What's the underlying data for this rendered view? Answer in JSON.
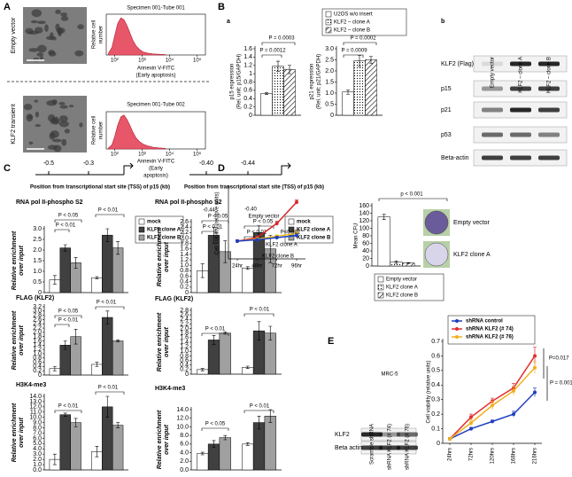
{
  "figure": {
    "panel_labels": [
      "A",
      "B",
      "a",
      "b",
      "C",
      "D",
      "E"
    ],
    "a_rows": [
      "Empty vector",
      "KLF2 transient"
    ],
    "blot_b": {
      "lanes": [
        "Empty vector",
        "KLF2 – clone A",
        "KLF2 – clone B"
      ],
      "rows": [
        "KLF2 (Flag)",
        "p15",
        "p21",
        "p53",
        "Beta-actin"
      ]
    },
    "tss": [
      {
        "label": "Position from transcriptional start site (TSS)  of p15 (kb)",
        "sites": [
          "-0.5",
          "-0.3"
        ]
      },
      {
        "label": "Position from transcriptional start site (TSS)  of p15 (kb)",
        "sites": [
          "-0.40",
          "-0.44"
        ]
      }
    ],
    "d_images": [
      "Empty vector",
      "KLF2 clone A"
    ],
    "blot_e": {
      "title": "MRC-5",
      "lanes": [
        "Scramble shRNA",
        "shRNA KLF2 (# 74)",
        "shRNA KLF2 (# 76)"
      ],
      "rows": [
        "KLF2",
        "Beta actin"
      ]
    }
  },
  "chart_data": [
    {
      "type": "area",
      "title": "Specimen 001-Tube 001",
      "ylabel": [
        "Relative cell",
        "number"
      ],
      "xlabel": [
        "Annexin V-FITC",
        "(Early apoptosis)"
      ],
      "log_x": true,
      "color": "#e8566a",
      "x": [
        60,
        80,
        100,
        130,
        170,
        220,
        280,
        360,
        460,
        600,
        800,
        1100,
        1600,
        2500,
        4000,
        7000
      ],
      "values": [
        0.05,
        0.2,
        0.5,
        0.85,
        1.0,
        0.95,
        0.8,
        0.6,
        0.4,
        0.25,
        0.15,
        0.08,
        0.05,
        0.03,
        0.02,
        0.01
      ],
      "xlim": [
        50,
        200000
      ],
      "ylim": [
        0,
        1.1
      ],
      "xticks": [
        {
          "value": 100,
          "label": "10²"
        },
        {
          "value": 1000,
          "label": "10³"
        },
        {
          "value": 10000,
          "label": "10⁴"
        },
        {
          "value": 100000,
          "label": "10⁵"
        }
      ]
    },
    {
      "type": "area",
      "title": "Specimen 001-Tube 002",
      "ylabel": [
        "Relative cell",
        "number"
      ],
      "xlabel": [
        "Annexin V-FITC",
        "(Early",
        "apoptosis)"
      ],
      "log_x": true,
      "color": "#e8566a",
      "x": [
        60,
        80,
        100,
        130,
        170,
        220,
        280,
        360,
        460,
        600,
        800,
        1100,
        1600,
        2500,
        4000,
        7000
      ],
      "values": [
        0.03,
        0.12,
        0.35,
        0.7,
        0.95,
        1.0,
        0.88,
        0.7,
        0.5,
        0.33,
        0.22,
        0.14,
        0.09,
        0.05,
        0.03,
        0.02
      ],
      "xlim": [
        50,
        200000
      ],
      "ylim": [
        0,
        1.1
      ],
      "xticks": [
        {
          "value": 100,
          "label": "10²"
        },
        {
          "value": 1000,
          "label": "10³"
        },
        {
          "value": 10000,
          "label": "10⁴"
        },
        {
          "value": 100000,
          "label": "10⁵"
        }
      ]
    },
    {
      "type": "bar",
      "ylabel": [
        "p15 expression",
        "(Rel. unit: p15/GAPDH)"
      ],
      "categories": [
        null
      ],
      "series": [
        {
          "name": "U2OS w/o insert",
          "color": "#ffffff",
          "values": [
            0.52
          ],
          "errors": [
            0.02
          ]
        },
        {
          "name": "KLF2 – clone A",
          "color": "#ffffff",
          "pattern": "dots",
          "values": [
            1.18
          ],
          "errors": [
            0.12
          ]
        },
        {
          "name": "KLF2 – clone B",
          "color": "#ffffff",
          "pattern": "hatch",
          "values": [
            1.1
          ],
          "errors": [
            0.1
          ]
        }
      ],
      "ylim": [
        0,
        1.6
      ],
      "yticks": [
        0,
        0.2,
        0.4,
        0.6,
        0.8,
        1,
        1.2,
        1.4,
        1.6
      ],
      "annotations": [
        "P = 0.0003",
        "P = 0.0012"
      ]
    },
    {
      "type": "bar",
      "ylabel": [
        "p21 expression",
        "(Rel. unit: p21/GAPDH)"
      ],
      "categories": [
        null
      ],
      "series": [
        {
          "color": "#ffffff",
          "values": [
            1.05
          ],
          "errors": [
            0.1
          ]
        },
        {
          "color": "#ffffff",
          "pattern": "dots",
          "values": [
            2.45
          ],
          "errors": [
            0.25
          ]
        },
        {
          "color": "#ffffff",
          "pattern": "hatch",
          "values": [
            2.5
          ],
          "errors": [
            0.15
          ]
        }
      ],
      "ylim": [
        0,
        3
      ],
      "yticks": [
        0,
        0.5,
        {
          "value": 1,
          "label": "1.0"
        },
        1.5,
        {
          "value": 2,
          "label": "2.0"
        },
        2.5,
        {
          "value": 3,
          "label": "3.0"
        }
      ],
      "annotations": [
        "P = 0.0002",
        "P = 0.0009"
      ]
    },
    {
      "type": "bar",
      "title": "RNA pol II-phospho S2",
      "ylabel": [
        "Relative enrichment",
        "over input"
      ],
      "categories": [
        null,
        null
      ],
      "series": [
        {
          "name": "mock",
          "color": "#ffffff",
          "values": [
            0.6,
            0.7
          ],
          "errors": [
            0.2,
            0.05
          ]
        },
        {
          "name": "KLF2 clone A",
          "color": "#404040",
          "values": [
            2.1,
            2.7
          ],
          "errors": [
            0.15,
            0.3
          ]
        },
        {
          "name": "KLF2 clone B",
          "color": "#a0a0a0",
          "values": [
            1.4,
            2.1
          ],
          "errors": [
            0.25,
            0.3
          ]
        }
      ],
      "ylim": [
        0,
        3
      ],
      "yticks": [
        0,
        0.5,
        {
          "value": 1,
          "label": "1.0"
        },
        1.5,
        {
          "value": 2,
          "label": "2.0"
        },
        2.5,
        {
          "value": 3,
          "label": "3.0"
        }
      ],
      "annotations": [
        "P < 0.01",
        "P < 0.05",
        "P < 0.01"
      ]
    },
    {
      "type": "bar",
      "title": "RNA pol II-phospho S2",
      "ylabel": [
        "Relative enrichment",
        "over input"
      ],
      "categories": [
        null,
        null
      ],
      "series": [
        {
          "name": "mock",
          "color": "#ffffff",
          "values": [
            0.8,
            0.9
          ],
          "errors": [
            0.25,
            0.05
          ]
        },
        {
          "name": "KLF2 clone A",
          "color": "#404040",
          "values": [
            2.1,
            2.2
          ],
          "errors": [
            0.3,
            0.25
          ]
        },
        {
          "name": "KLF2 clone B",
          "color": "#a0a0a0",
          "values": [
            1.5,
            1.6
          ],
          "errors": [
            0.4,
            0.5
          ]
        }
      ],
      "ylim": [
        0,
        2.6
      ],
      "yticks": [
        0,
        0.2,
        0.4,
        0.6,
        0.8,
        {
          "value": 1,
          "label": "1.0"
        },
        1.2,
        1.4,
        1.6,
        1.8,
        {
          "value": 2,
          "label": "2.0"
        },
        2.2,
        2.4,
        2.6
      ],
      "annotations": [
        "-0.44",
        "-0.40",
        "P < 0.05",
        "P < 0.01",
        "P < 0.05",
        "P < 0.01"
      ]
    },
    {
      "type": "bar",
      "title": "FLAG (KLF2)",
      "ylabel": [
        "Relative enrichment",
        "over input"
      ],
      "categories": [
        null,
        null
      ],
      "series": [
        {
          "color": "#ffffff",
          "values": [
            0.3,
            0.5
          ],
          "errors": [
            0.1,
            0.1
          ]
        },
        {
          "color": "#404040",
          "values": [
            1.4,
            2.7
          ],
          "errors": [
            0.2,
            0.3
          ]
        },
        {
          "color": "#a0a0a0",
          "values": [
            1.8,
            1.6
          ],
          "errors": [
            0.35,
            0.05
          ]
        }
      ],
      "ylim": [
        0,
        3.2
      ],
      "yticks": [
        0,
        0.2,
        0.4,
        0.6,
        0.8,
        {
          "value": 1,
          "label": "1.0"
        },
        1.2,
        1.4,
        1.6,
        1.8,
        {
          "value": 2,
          "label": "2.0"
        },
        2.2,
        2.4,
        2.6,
        2.8,
        {
          "value": 3,
          "label": "3.0"
        },
        3.2
      ],
      "annotations": [
        "P < 0.01",
        "P < 0.05",
        "P < 0.01"
      ]
    },
    {
      "type": "bar",
      "title": "FLAG (KLF2)",
      "ylabel": [
        "Relative enrichment",
        "over input"
      ],
      "categories": [
        null,
        null
      ],
      "series": [
        {
          "color": "#ffffff",
          "values": [
            0.2,
            0.3
          ],
          "errors": [
            0.05,
            0.05
          ]
        },
        {
          "color": "#404040",
          "values": [
            1.5,
            1.9
          ],
          "errors": [
            0.2,
            0.4
          ]
        },
        {
          "color": "#a0a0a0",
          "values": [
            1.8,
            1.8
          ],
          "errors": [
            0.05,
            0.3
          ]
        }
      ],
      "ylim": [
        0,
        2.8
      ],
      "yticks": [
        0,
        0.2,
        0.4,
        0.6,
        0.8,
        {
          "value": 1,
          "label": "1.0"
        },
        1.2,
        1.4,
        1.6,
        1.8,
        {
          "value": 2,
          "label": "2.0"
        },
        2.2,
        2.4,
        2.6,
        2.8
      ],
      "annotations": [
        "P < 0.01",
        "P < 0.01"
      ]
    },
    {
      "type": "bar",
      "title": "H3K4-me3",
      "ylabel": [
        "Relative enrichment",
        "over input"
      ],
      "categories": [
        null,
        null
      ],
      "series": [
        {
          "color": "#ffffff",
          "values": [
            2.0,
            3.5
          ],
          "errors": [
            1,
            1
          ]
        },
        {
          "color": "#404040",
          "values": [
            10.5,
            12.0
          ],
          "errors": [
            0.3,
            2.0
          ]
        },
        {
          "color": "#a0a0a0",
          "values": [
            9.0,
            8.5
          ],
          "errors": [
            0.8,
            0.5
          ]
        }
      ],
      "ylim": [
        0,
        14
      ],
      "yticks": [
        {
          "value": 0,
          "label": "0.0"
        },
        {
          "value": 1,
          "label": "1.0"
        },
        {
          "value": 2,
          "label": "2.0"
        },
        {
          "value": 3,
          "label": "3.0"
        },
        {
          "value": 4,
          "label": "4.0"
        },
        {
          "value": 5,
          "label": "5.0"
        },
        {
          "value": 6,
          "label": "6.0"
        },
        {
          "value": 7,
          "label": "7.0"
        },
        {
          "value": 8,
          "label": "8.0"
        },
        {
          "value": 9,
          "label": "9.0"
        },
        {
          "value": 10,
          "label": "10.0"
        },
        {
          "value": 11,
          "label": "11.0"
        },
        {
          "value": 12,
          "label": "12.0"
        },
        {
          "value": 13,
          "label": "13.0"
        },
        {
          "value": 14,
          "label": "14.0"
        }
      ],
      "annotations": [
        "P < 0.01",
        "P < 0.01"
      ]
    },
    {
      "type": "bar",
      "title": "H3K4-me3",
      "ylabel": [
        "Relative enrichment",
        "over input"
      ],
      "categories": [
        null,
        null
      ],
      "series": [
        {
          "color": "#ffffff",
          "values": [
            3.8,
            6.0
          ],
          "errors": [
            0.3,
            0.3
          ]
        },
        {
          "color": "#404040",
          "values": [
            6.0,
            11.0
          ],
          "errors": [
            0.8,
            1.5
          ]
        },
        {
          "color": "#a0a0a0",
          "values": [
            7.5,
            12.5
          ],
          "errors": [
            0.5,
            1.5
          ]
        }
      ],
      "ylim": [
        0,
        14
      ],
      "yticks": [
        {
          "value": 0,
          "label": "0.0"
        },
        {
          "value": 2,
          "label": "2.0"
        },
        {
          "value": 4,
          "label": "4.0"
        },
        {
          "value": 6,
          "label": "6.0"
        },
        {
          "value": 8,
          "label": "8.0"
        },
        {
          "value": 10,
          "label": "10.0"
        },
        {
          "value": 12,
          "label": "12.0"
        },
        {
          "value": 14,
          "label": "14.0"
        }
      ],
      "annotations": [
        "P < 0.05",
        "P < 0.01"
      ]
    },
    {
      "type": "line",
      "ylabel": [
        "Cell viability (relative units)"
      ],
      "categories": [
        "24hr",
        "48hr",
        "72hr",
        "96hr"
      ],
      "series": [
        {
          "color": "#d62728",
          "values": [
            0.25,
            0.3,
            0.5,
            0.8
          ],
          "errors": [
            0.02,
            0.02,
            0.03,
            0.03
          ]
        },
        {
          "color": "#f0c020",
          "values": [
            0.25,
            0.28,
            0.32,
            0.36
          ],
          "errors": [
            0.02,
            0.02,
            0.02,
            0.03
          ]
        },
        {
          "color": "#2040c0",
          "values": [
            0.25,
            0.27,
            0.3,
            0.33
          ],
          "errors": [
            0.02,
            0.02,
            0.02,
            0.02
          ]
        }
      ],
      "ylim": [
        0,
        1
      ],
      "annotations": [
        "Empty vector",
        "P<0.001",
        "KLF2 clone A",
        "KLF2 clone B"
      ]
    },
    {
      "type": "bar",
      "ylabel": [
        "Mean CFU"
      ],
      "categories": [
        null
      ],
      "series": [
        {
          "name": "Empty vector",
          "color": "#ffffff",
          "values": [
            130
          ],
          "errors": [
            7
          ]
        },
        {
          "name": "KLF2 clone A",
          "color": "#ffffff",
          "pattern": "dots",
          "values": [
            10
          ],
          "errors": [
            3
          ]
        },
        {
          "name": "KLF2 clone B",
          "color": "#ffffff",
          "pattern": "hatch",
          "values": [
            8
          ],
          "errors": [
            1
          ]
        }
      ],
      "ylim": [
        0,
        160
      ],
      "yticks": [
        0,
        20,
        40,
        60,
        80,
        100,
        120,
        140,
        160
      ],
      "annotations": [
        "p < 0.001"
      ]
    },
    {
      "type": "line",
      "ylabel": [
        "Cell viability (relative units)"
      ],
      "categories": [
        "24hrs",
        "72hrs",
        "120hrs",
        "168hrs",
        "216hrs"
      ],
      "series": [
        {
          "name": "shRNA control",
          "color": "#2040c0",
          "values": [
            0.03,
            0.1,
            0.15,
            0.2,
            0.35
          ],
          "errors": [
            0.01,
            0.01,
            0.01,
            0.02,
            0.03
          ]
        },
        {
          "name": "shRNA KLF2 (# 74)",
          "color": "#e03030",
          "values": [
            0.03,
            0.18,
            0.29,
            0.38,
            0.6
          ],
          "errors": [
            0.01,
            0.02,
            0.02,
            0.03,
            0.06
          ]
        },
        {
          "name": "shRNA KLF2 (# 76)",
          "color": "#f0b020",
          "values": [
            0.03,
            0.14,
            0.26,
            0.36,
            0.52
          ],
          "errors": [
            0.01,
            0.02,
            0.03,
            0.03,
            0.04
          ]
        }
      ],
      "ylim": [
        0,
        0.7
      ],
      "yticks": [
        0,
        0.1,
        0.2,
        0.3,
        0.4,
        0.5,
        0.6,
        0.7
      ],
      "annotations": [
        "P=0.017",
        "P = 0.001"
      ]
    }
  ]
}
